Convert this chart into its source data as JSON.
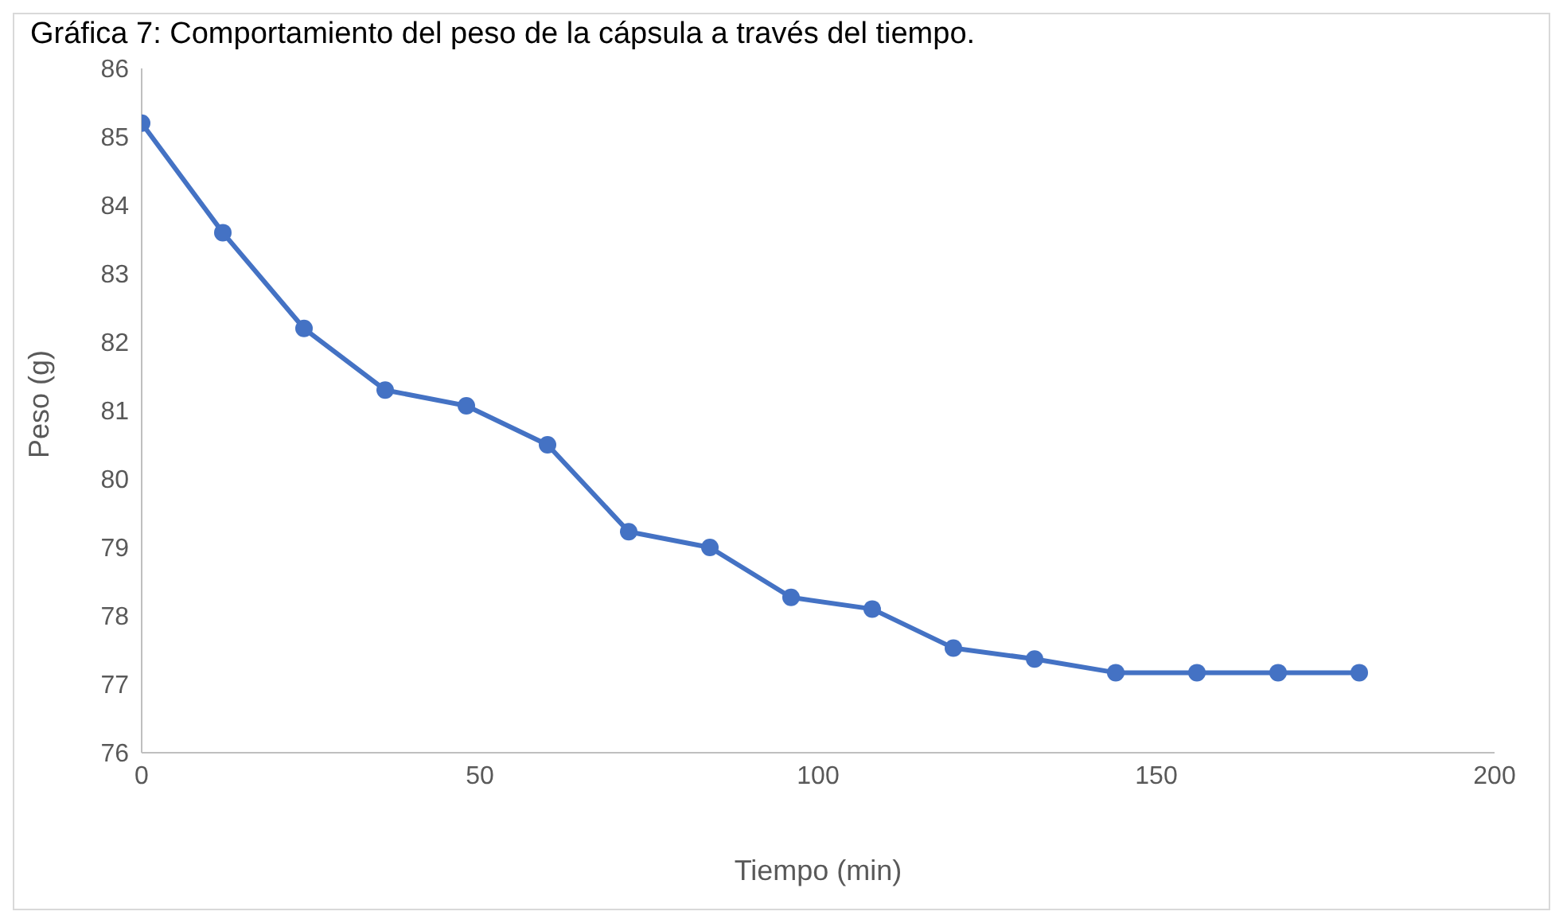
{
  "chart_data": {
    "type": "line",
    "title": "Gráfica 7: Comportamiento del peso de la cápsula a través del tiempo.",
    "xlabel": "Tiempo (min)",
    "ylabel": "Peso (g)",
    "x": [
      0,
      12,
      24,
      36,
      48,
      60,
      72,
      84,
      96,
      108,
      120,
      132,
      144,
      156,
      168,
      180
    ],
    "series": [
      {
        "color": "#4472c4",
        "values": [
          85.2,
          83.6,
          82.2,
          81.3,
          81.07,
          80.5,
          79.23,
          79.0,
          78.27,
          78.1,
          77.53,
          77.37,
          77.17,
          77.17,
          77.17,
          77.17
        ]
      }
    ],
    "xlim": [
      0,
      200
    ],
    "xticks": [
      0,
      50,
      100,
      150,
      200
    ],
    "ylim": [
      76,
      86
    ],
    "yticks": [
      76,
      77,
      78,
      79,
      80,
      81,
      82,
      83,
      84,
      85,
      86
    ],
    "grid": false,
    "legend": false,
    "marker": "circle",
    "line_style": "solid"
  }
}
